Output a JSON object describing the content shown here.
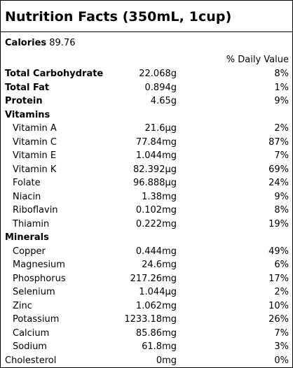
{
  "title": "Nutrition Facts (350mL, 1cup)",
  "calories": {
    "label": "Calories",
    "value": "89.76"
  },
  "daily_value_header": "% Daily Value",
  "macros": [
    {
      "name": "Total Carbohydrate",
      "amount": "22.068g",
      "dv": "8%"
    },
    {
      "name": "Total Fat",
      "amount": "0.894g",
      "dv": "1%"
    },
    {
      "name": "Protein",
      "amount": "4.65g",
      "dv": "9%"
    }
  ],
  "vitamins_header": "Vitamins",
  "vitamins": [
    {
      "name": "Vitamin A",
      "amount": "21.6μg",
      "dv": "2%"
    },
    {
      "name": "Vitamin C",
      "amount": "77.84mg",
      "dv": "87%"
    },
    {
      "name": "Vitamin E",
      "amount": "1.044mg",
      "dv": "7%"
    },
    {
      "name": "Vitamin K",
      "amount": "82.392μg",
      "dv": "69%"
    },
    {
      "name": "Folate",
      "amount": "96.888μg",
      "dv": "24%"
    },
    {
      "name": "Niacin",
      "amount": "1.38mg",
      "dv": "9%"
    },
    {
      "name": "Riboflavin",
      "amount": "0.102mg",
      "dv": "8%"
    },
    {
      "name": "Thiamin",
      "amount": "0.222mg",
      "dv": "19%"
    }
  ],
  "minerals_header": "Minerals",
  "minerals": [
    {
      "name": "Copper",
      "amount": "0.444mg",
      "dv": "49%"
    },
    {
      "name": "Magnesium",
      "amount": "24.6mg",
      "dv": "6%"
    },
    {
      "name": "Phosphorus",
      "amount": "217.26mg",
      "dv": "17%"
    },
    {
      "name": "Selenium",
      "amount": "1.044μg",
      "dv": "2%"
    },
    {
      "name": "Zinc",
      "amount": "1.062mg",
      "dv": "10%"
    },
    {
      "name": "Potassium",
      "amount": "1233.18mg",
      "dv": "26%"
    },
    {
      "name": "Calcium",
      "amount": "85.86mg",
      "dv": "7%"
    },
    {
      "name": "Sodium",
      "amount": "61.8mg",
      "dv": "3%"
    }
  ],
  "cholesterol": {
    "name": "Cholesterol",
    "amount": "0mg",
    "dv": "0%"
  }
}
